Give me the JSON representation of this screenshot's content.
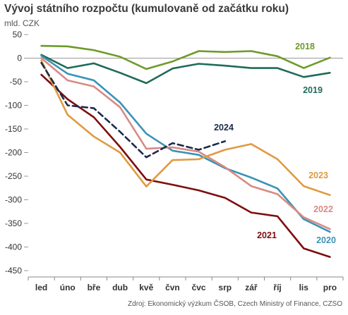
{
  "title": "Vývoj státního rozpočtu (kumulovaně od začátku roku)",
  "subtitle": "mld. CZK",
  "source": "Zdroj: Ekonomický výzkum ČSOB, Czech Ministry of Finance, CZSO",
  "chart_data": {
    "type": "line",
    "title": "Vývoj státního rozpočtu (kumulovaně od začátku roku)",
    "ylabel": "mld. CZK",
    "xlabel": "",
    "categories": [
      "led",
      "úno",
      "bře",
      "dub",
      "kvě",
      "čvn",
      "čvc",
      "srp",
      "zář",
      "říj",
      "lis",
      "pro"
    ],
    "ylim": [
      -450,
      50
    ],
    "yticks": [
      50,
      0,
      -50,
      -100,
      -150,
      -200,
      -250,
      -300,
      -350,
      -400,
      -450
    ],
    "grid": false,
    "legend": "inline labels at line ends",
    "series": [
      {
        "name": "2018",
        "color": "#6e9a2b",
        "dashed": false,
        "values": [
          26,
          25,
          17,
          3,
          -23,
          -7,
          15,
          13,
          15,
          4,
          -21,
          1
        ]
      },
      {
        "name": "2019",
        "color": "#1f6b58",
        "dashed": false,
        "values": [
          7,
          -21,
          -11,
          -31,
          -53,
          -22,
          -12,
          -16,
          -21,
          -21,
          -40,
          -31
        ]
      },
      {
        "name": "2020",
        "color": "#3b93b6",
        "dashed": false,
        "values": [
          5,
          -33,
          -47,
          -94,
          -160,
          -196,
          -205,
          -233,
          -253,
          -276,
          -341,
          -368
        ]
      },
      {
        "name": "2021",
        "color": "#7d0e0e",
        "dashed": false,
        "values": [
          -35,
          -87,
          -125,
          -188,
          -257,
          -268,
          -280,
          -296,
          -327,
          -335,
          -403,
          -421
        ]
      },
      {
        "name": "2022",
        "color": "#d98a84",
        "dashed": false,
        "values": [
          0,
          -47,
          -60,
          -104,
          -192,
          -189,
          -198,
          -231,
          -271,
          -288,
          -337,
          -362
        ]
      },
      {
        "name": "2023",
        "color": "#e09a3f",
        "dashed": false,
        "values": [
          -5,
          -120,
          -166,
          -200,
          -272,
          -216,
          -214,
          -194,
          -182,
          -214,
          -271,
          -290
        ]
      },
      {
        "name": "2024",
        "color": "#1c2b4c",
        "dashed": true,
        "values": [
          -10,
          -100,
          -106,
          -156,
          -210,
          -180,
          -194,
          -176,
          null,
          null,
          null,
          null
        ]
      }
    ]
  }
}
